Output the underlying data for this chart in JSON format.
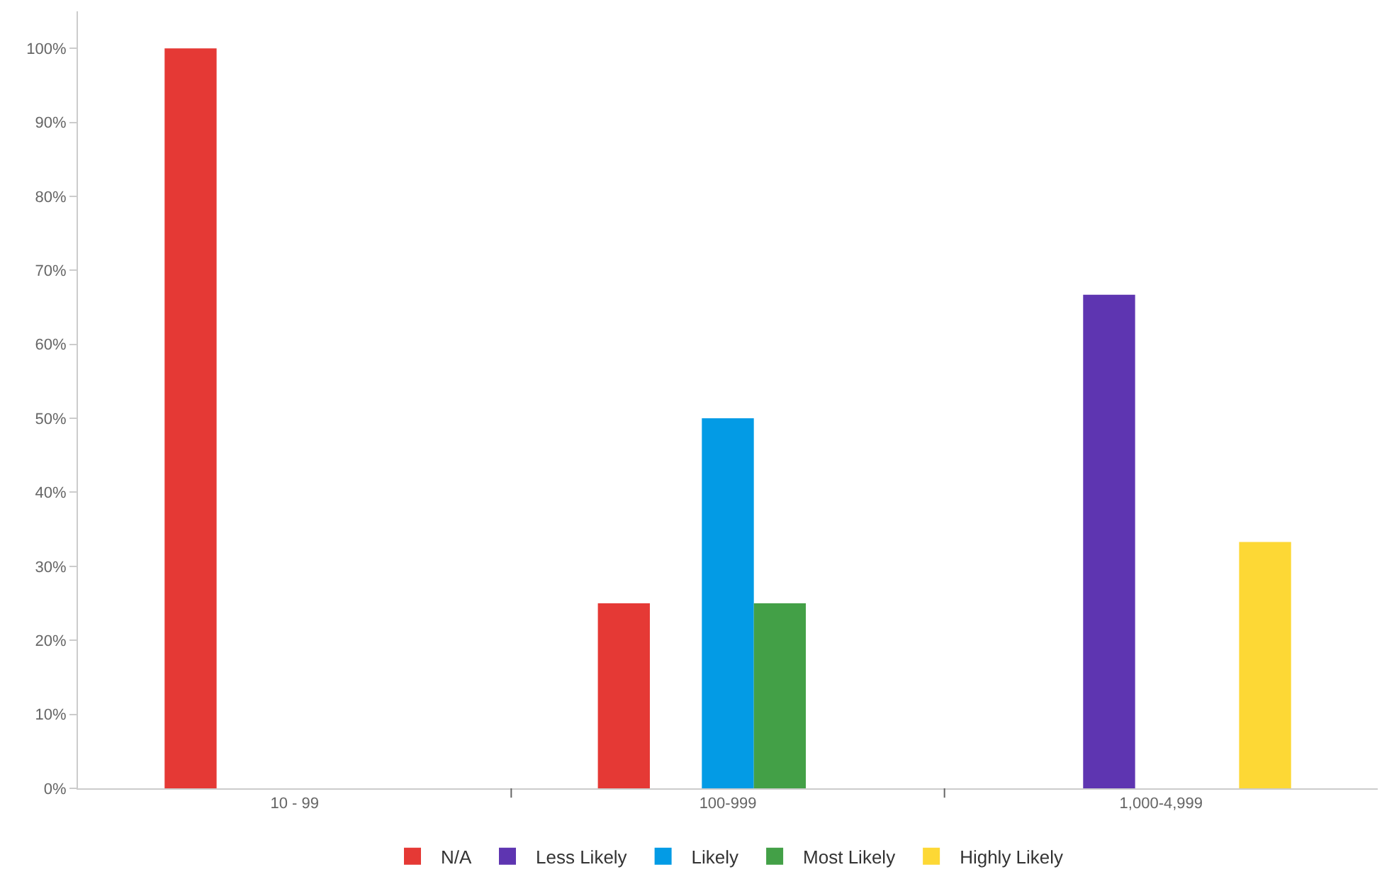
{
  "chart_data": {
    "type": "bar",
    "categories": [
      "10 - 99",
      "100-999",
      "1,000-4,999"
    ],
    "series": [
      {
        "name": "N/A",
        "color": "#e53935",
        "values": [
          100,
          25,
          null
        ]
      },
      {
        "name": "Less Likely",
        "color": "#5e35b1",
        "values": [
          null,
          null,
          66.7
        ]
      },
      {
        "name": "Likely",
        "color": "#039be5",
        "values": [
          null,
          50,
          null
        ]
      },
      {
        "name": "Most Likely",
        "color": "#43a047",
        "values": [
          null,
          25,
          null
        ]
      },
      {
        "name": "Highly Likely",
        "color": "#fdd835",
        "values": [
          null,
          null,
          33.3
        ]
      }
    ],
    "ylim": [
      0,
      105
    ],
    "yticks": [
      {
        "value": 0,
        "label": "0%"
      },
      {
        "value": 10,
        "label": "10%"
      },
      {
        "value": 20,
        "label": "20%"
      },
      {
        "value": 30,
        "label": "30%"
      },
      {
        "value": 40,
        "label": "40%"
      },
      {
        "value": 50,
        "label": "50%"
      },
      {
        "value": 60,
        "label": "60%"
      },
      {
        "value": 70,
        "label": "70%"
      },
      {
        "value": 80,
        "label": "80%"
      },
      {
        "value": 90,
        "label": "90%"
      },
      {
        "value": 100,
        "label": "100%"
      }
    ],
    "legend": "bottom"
  }
}
